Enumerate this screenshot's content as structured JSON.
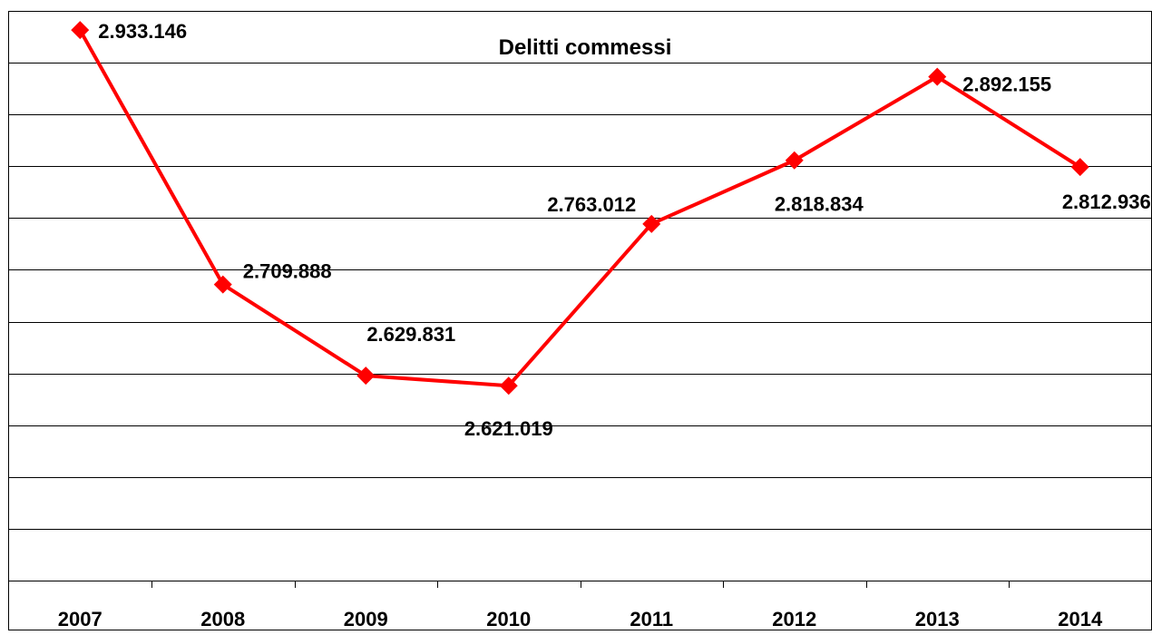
{
  "chart_data": {
    "type": "line",
    "title": "Delitti commessi",
    "categories": [
      "2007",
      "2008",
      "2009",
      "2010",
      "2011",
      "2012",
      "2013",
      "2014"
    ],
    "series": [
      {
        "values": [
          2933146,
          2709888,
          2629831,
          2621019,
          2763012,
          2818834,
          2892155,
          2812936
        ],
        "labels": [
          "2.933.146",
          "2.709.888",
          "2.629.831",
          "2.621.019",
          "2.763.012",
          "2.818.834",
          "2.892.155",
          "2.812.936"
        ],
        "color": "#ff0000",
        "marker": "diamond"
      }
    ],
    "xlabel": "",
    "ylabel": "",
    "ylim": [
      2450000,
      2950000
    ],
    "y_axis_labels_shown": false,
    "grid": true,
    "legend": "none"
  }
}
